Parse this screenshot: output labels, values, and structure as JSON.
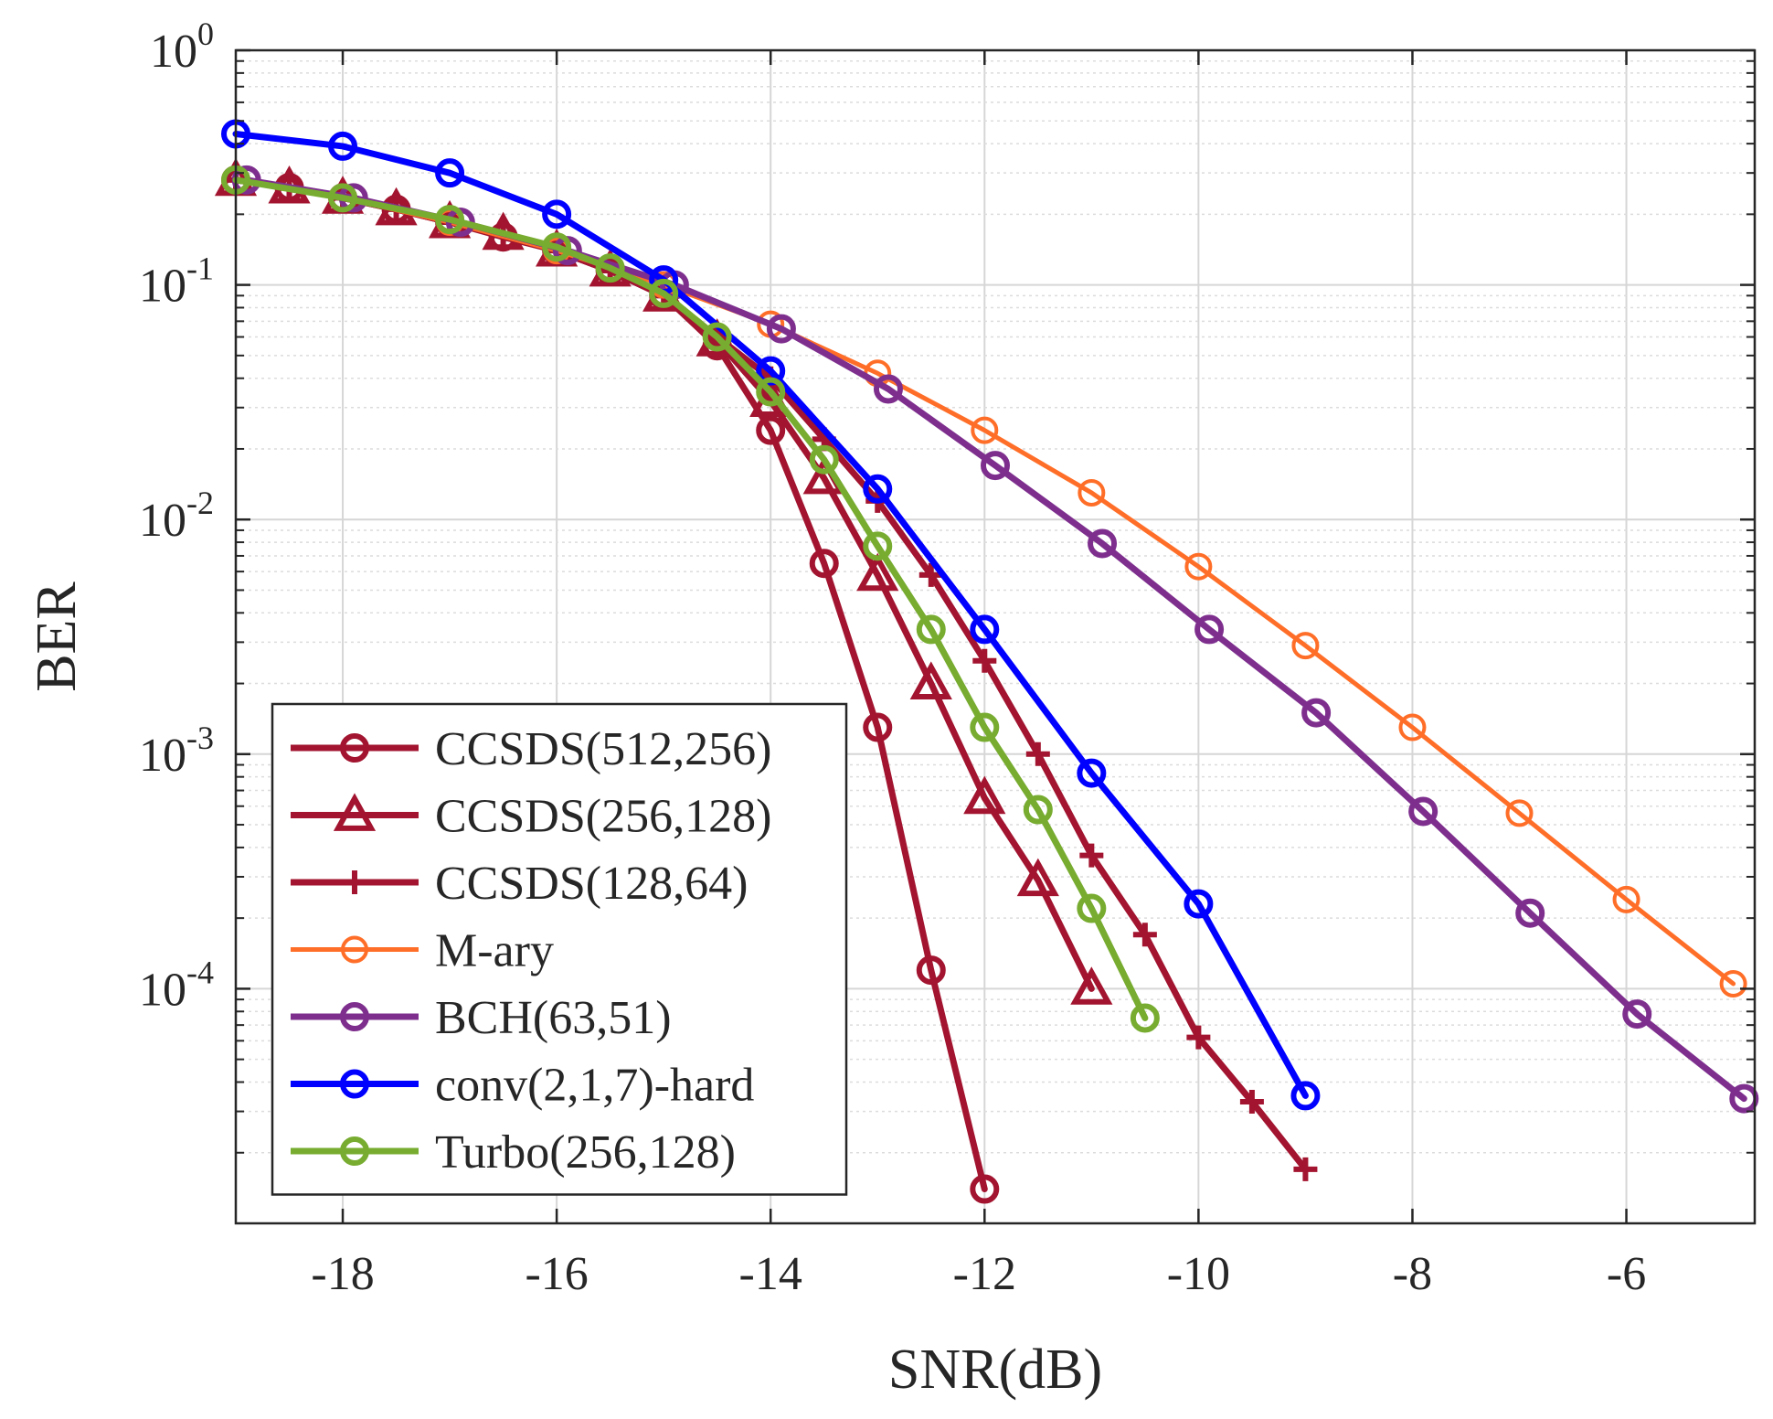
{
  "chart_data": {
    "type": "line",
    "xlabel": "SNR(dB)",
    "ylabel": "BER",
    "xlim": [
      -19,
      -4.8
    ],
    "ylim": [
      1e-05,
      1
    ],
    "yscale": "log",
    "grid": true,
    "minor_grid": true,
    "legend_position": "bottom-left",
    "x_ticks": [
      -18,
      -16,
      -14,
      -12,
      -10,
      -8,
      -6
    ],
    "x_tick_labels": [
      "-18",
      "-16",
      "-14",
      "-12",
      "-10",
      "-8",
      "-6"
    ],
    "y_ticks": [
      {
        "value": 1,
        "base": "10",
        "exp": "0"
      },
      {
        "value": 0.1,
        "base": "10",
        "exp": "-1"
      },
      {
        "value": 0.01,
        "base": "10",
        "exp": "-2"
      },
      {
        "value": 0.001,
        "base": "10",
        "exp": "-3"
      },
      {
        "value": 0.0001,
        "base": "10",
        "exp": "-4"
      }
    ],
    "series": [
      {
        "name": "CCSDS(512,256)",
        "color": "#a2142f",
        "marker": "circle",
        "line_width": 7,
        "x": [
          -19,
          -18.5,
          -18,
          -17.5,
          -17,
          -16.5,
          -16,
          -15.5,
          -15,
          -14.5,
          -14,
          -13.5,
          -13,
          -12.5,
          -12
        ],
        "y": [
          0.28,
          0.26,
          0.235,
          0.21,
          0.185,
          0.16,
          0.14,
          0.115,
          0.09,
          0.055,
          0.024,
          0.0065,
          0.0013,
          0.00012,
          1.4e-05
        ]
      },
      {
        "name": "CCSDS(256,128)",
        "color": "#a2142f",
        "marker": "triangle",
        "line_width": 7,
        "x": [
          -19,
          -18.5,
          -18,
          -17.5,
          -17,
          -16.5,
          -16,
          -15.5,
          -15,
          -14.5,
          -14,
          -13.5,
          -13,
          -12.5,
          -12,
          -11.5,
          -11
        ],
        "y": [
          0.28,
          0.26,
          0.235,
          0.21,
          0.185,
          0.165,
          0.14,
          0.115,
          0.09,
          0.058,
          0.032,
          0.015,
          0.0058,
          0.002,
          0.00065,
          0.00029,
          0.0001
        ]
      },
      {
        "name": "CCSDS(128,64)",
        "color": "#a2142f",
        "marker": "plus",
        "line_width": 7,
        "x": [
          -19,
          -18.5,
          -18,
          -17.5,
          -17,
          -16.5,
          -16,
          -15.5,
          -15,
          -14.5,
          -14,
          -13.5,
          -13,
          -12.5,
          -12,
          -11.5,
          -11,
          -10.5,
          -10,
          -9.5,
          -9
        ],
        "y": [
          0.28,
          0.26,
          0.235,
          0.21,
          0.185,
          0.165,
          0.14,
          0.115,
          0.09,
          0.06,
          0.04,
          0.022,
          0.012,
          0.0058,
          0.0025,
          0.001,
          0.00037,
          0.00017,
          6.2e-05,
          3.3e-05,
          1.7e-05
        ]
      },
      {
        "name": "M-ary",
        "color": "#ff6e28",
        "marker": "circle-open",
        "line_width": 5,
        "x": [
          -19,
          -18,
          -17,
          -16,
          -15,
          -14,
          -13,
          -12,
          -11,
          -10,
          -9,
          -8,
          -7,
          -6,
          -5
        ],
        "y": [
          0.28,
          0.235,
          0.185,
          0.14,
          0.1,
          0.068,
          0.042,
          0.024,
          0.013,
          0.0063,
          0.0029,
          0.0013,
          0.00056,
          0.00024,
          0.000105
        ]
      },
      {
        "name": "BCH(63,51)",
        "color": "#7e2f8e",
        "marker": "circle",
        "line_width": 7,
        "x": [
          -18.9,
          -17.9,
          -16.9,
          -15.9,
          -14.9,
          -13.9,
          -12.9,
          -11.9,
          -10.9,
          -9.9,
          -8.9,
          -7.9,
          -6.9,
          -5.9,
          -4.9
        ],
        "y": [
          0.28,
          0.235,
          0.185,
          0.14,
          0.1,
          0.065,
          0.036,
          0.017,
          0.0079,
          0.0034,
          0.0015,
          0.00057,
          0.00021,
          7.8e-05,
          3.4e-05
        ]
      },
      {
        "name": "conv(2,1,7)-hard",
        "color": "#0000ff",
        "marker": "circle",
        "line_width": 7,
        "x": [
          -19,
          -18,
          -17,
          -16,
          -15,
          -14,
          -13,
          -12,
          -11,
          -10,
          -9
        ],
        "y": [
          0.44,
          0.39,
          0.3,
          0.2,
          0.105,
          0.043,
          0.0135,
          0.0034,
          0.00083,
          0.00023,
          3.5e-05
        ]
      },
      {
        "name": "Turbo(256,128)",
        "color": "#77ac30",
        "marker": "circle",
        "line_width": 7,
        "x": [
          -19,
          -18,
          -17,
          -16,
          -15.5,
          -15,
          -14.5,
          -14,
          -13.5,
          -13,
          -12.5,
          -12,
          -11.5,
          -11,
          -10.5
        ],
        "y": [
          0.28,
          0.235,
          0.19,
          0.145,
          0.118,
          0.092,
          0.06,
          0.035,
          0.018,
          0.0077,
          0.0034,
          0.0013,
          0.00058,
          0.00022,
          7.5e-05
        ]
      }
    ]
  }
}
